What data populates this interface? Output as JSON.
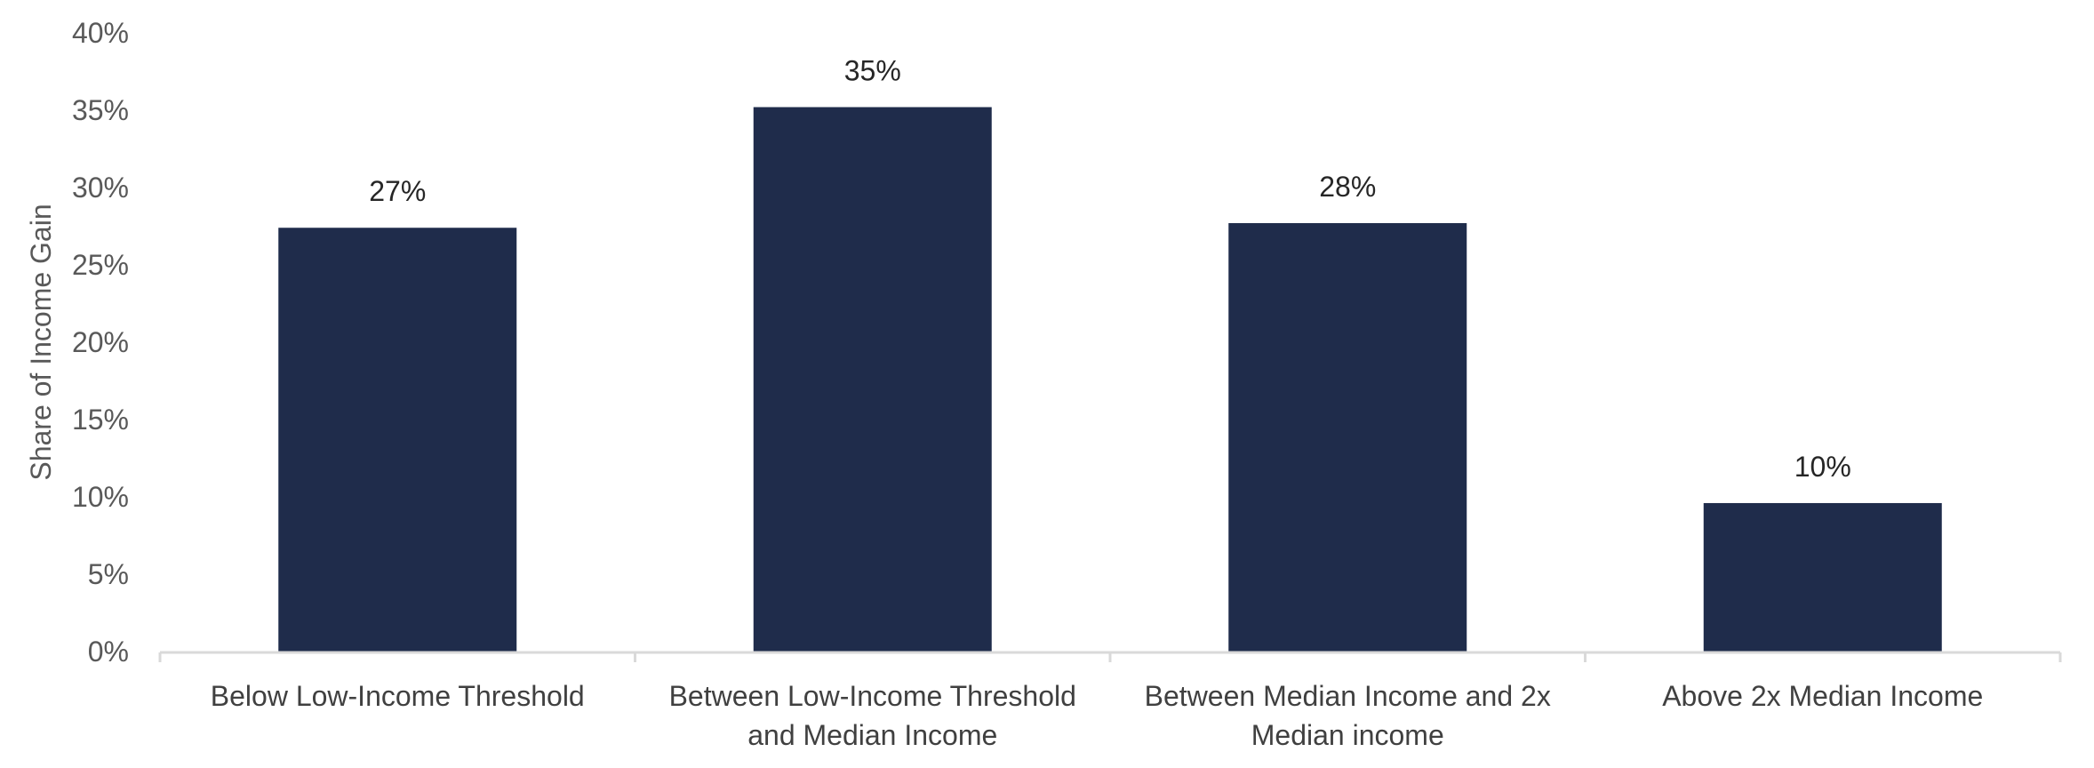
{
  "chart_data": {
    "type": "bar",
    "title": "",
    "xlabel": "",
    "ylabel": "Share of Income Gain",
    "categories": [
      [
        "Below Low-Income Threshold"
      ],
      [
        "Between Low-Income Threshold",
        "and Median Income"
      ],
      [
        "Between Median Income and 2x",
        "Median income"
      ],
      [
        "Above 2x Median Income"
      ]
    ],
    "values": [
      27.4,
      35.2,
      27.7,
      9.6
    ],
    "data_labels": [
      "27%",
      "35%",
      "28%",
      "10%"
    ],
    "ylim": [
      0,
      40
    ],
    "yticks": [
      0,
      5,
      10,
      15,
      20,
      25,
      30,
      35,
      40
    ],
    "ytick_labels": [
      "0%",
      "5%",
      "10%",
      "15%",
      "20%",
      "25%",
      "30%",
      "35%",
      "40%"
    ],
    "grid": false,
    "legend": "none",
    "colors": {
      "bar": "#1f2c4b",
      "axis": "#d9d9d9"
    }
  }
}
